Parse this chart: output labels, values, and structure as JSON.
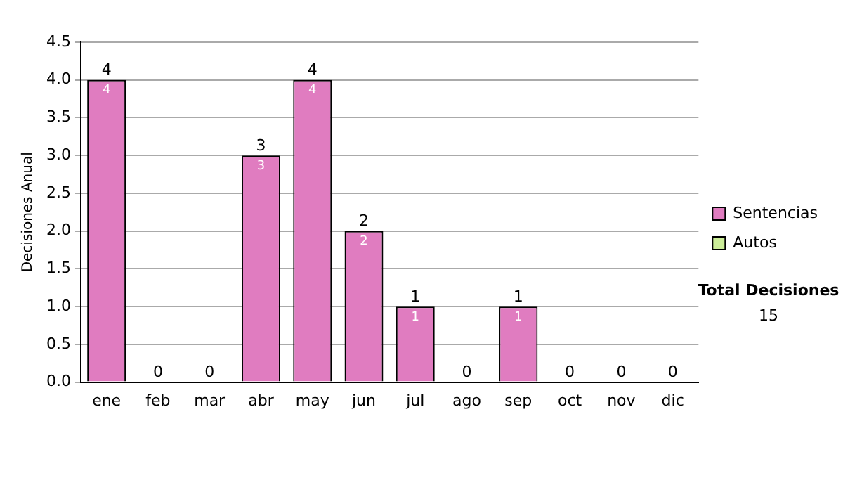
{
  "chart_data": {
    "type": "bar",
    "stacked": true,
    "ylabel": "Decisiones Anual",
    "categories": [
      "ene",
      "feb",
      "mar",
      "abr",
      "may",
      "jun",
      "jul",
      "ago",
      "sep",
      "oct",
      "nov",
      "dic"
    ],
    "series": [
      {
        "name": "Sentencias",
        "color": "#e07cc0",
        "values": [
          4,
          0,
          0,
          3,
          4,
          2,
          1,
          0,
          1,
          0,
          0,
          0
        ],
        "value_labels": [
          "4",
          null,
          null,
          "3",
          "4",
          "2",
          "1",
          null,
          "1",
          null,
          null,
          null
        ]
      },
      {
        "name": "Autos",
        "color": "#ccee99",
        "values": [
          0,
          0,
          0,
          0,
          0,
          0,
          0,
          0,
          0,
          0,
          0,
          0
        ]
      }
    ],
    "totals": [
      "4",
      "0",
      "0",
      "3",
      "4",
      "2",
      "1",
      "0",
      "1",
      "0",
      "0",
      "0"
    ],
    "ylim": [
      0,
      4.5
    ],
    "yticks": [
      {
        "value": 0,
        "label": "0.0"
      },
      0.5,
      {
        "value": 1,
        "label": "1.0"
      },
      1.5,
      {
        "value": 2,
        "label": "2.0"
      },
      2.5,
      {
        "value": 3,
        "label": "3.0"
      },
      3.5,
      {
        "value": 4,
        "label": "4.0"
      },
      4.5
    ],
    "grid": "y",
    "legend": "right",
    "annotations": [
      "Total Decisiones",
      "15"
    ]
  }
}
